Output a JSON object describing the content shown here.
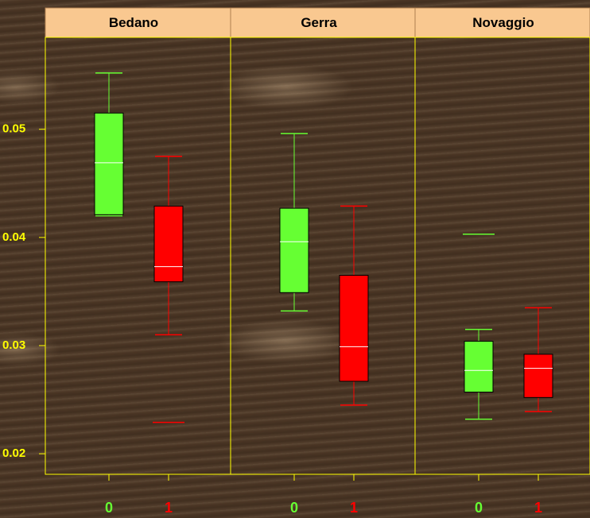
{
  "chart_data": {
    "type": "box",
    "categories": [
      "0",
      "1"
    ],
    "colors": [
      "#66ff33",
      "#ff0000"
    ],
    "ylim": [
      0.0181,
      0.0585
    ],
    "yticks": [
      0.02,
      0.03,
      0.04,
      0.05
    ],
    "panels": [
      {
        "title": "Bedano",
        "boxes": [
          {
            "whisker_low": 0.042,
            "q1": 0.0421,
            "median": 0.0469,
            "q3": 0.0515,
            "whisker_high": 0.0552,
            "outliers": []
          },
          {
            "whisker_low": 0.031,
            "q1": 0.0359,
            "median": 0.0373,
            "q3": 0.0429,
            "whisker_high": 0.0475,
            "outliers": [
              0.0229
            ]
          }
        ]
      },
      {
        "title": "Gerra",
        "boxes": [
          {
            "whisker_low": 0.0332,
            "q1": 0.0349,
            "median": 0.0396,
            "q3": 0.0427,
            "whisker_high": 0.0496,
            "outliers": []
          },
          {
            "whisker_low": 0.0245,
            "q1": 0.0267,
            "median": 0.0299,
            "q3": 0.0365,
            "whisker_high": 0.0429,
            "outliers": []
          }
        ]
      },
      {
        "title": "Novaggio",
        "boxes": [
          {
            "whisker_low": 0.0232,
            "q1": 0.0257,
            "median": 0.0277,
            "q3": 0.0304,
            "whisker_high": 0.0315,
            "outliers": [
              0.0403
            ]
          },
          {
            "whisker_low": 0.0239,
            "q1": 0.0252,
            "median": 0.0279,
            "q3": 0.0292,
            "whisker_high": 0.0335,
            "outliers": []
          }
        ]
      }
    ]
  }
}
